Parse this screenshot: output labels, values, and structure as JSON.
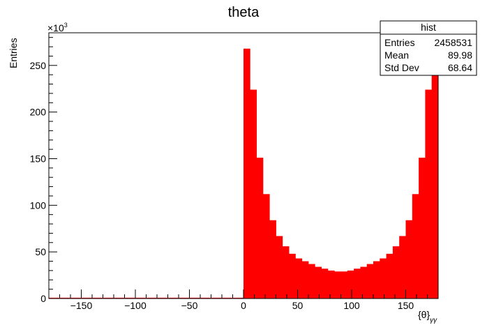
{
  "chart_data": {
    "type": "bar",
    "title": "theta",
    "xlabel": "{θ}",
    "xlabel_subscript": "γγ",
    "ylabel": "Entries",
    "y_multiplier": "×10",
    "y_multiplier_exp": "3",
    "xlim": [
      -180,
      180
    ],
    "ylim": [
      0,
      285
    ],
    "x_ticks": [
      -150,
      -100,
      -50,
      0,
      50,
      100,
      150
    ],
    "y_ticks": [
      0,
      50,
      100,
      150,
      200,
      250
    ],
    "bin_width": 6,
    "bar_color": "#ff0000",
    "bins_x_low": [
      0,
      6,
      12,
      18,
      24,
      30,
      36,
      42,
      48,
      54,
      60,
      66,
      72,
      78,
      84,
      90,
      96,
      102,
      108,
      114,
      120,
      126,
      132,
      138,
      144,
      150,
      156,
      162,
      168,
      174
    ],
    "values": [
      268,
      224,
      151,
      112,
      84,
      67,
      56,
      48,
      43,
      40,
      37,
      34,
      32,
      30,
      29,
      29,
      30,
      32,
      34,
      37,
      40,
      43,
      48,
      56,
      67,
      84,
      112,
      151,
      224,
      268
    ],
    "stats_box": {
      "title": "hist",
      "rows": [
        {
          "label": "Entries",
          "value": "2458531"
        },
        {
          "label": "Mean",
          "value": "89.98"
        },
        {
          "label": "Std Dev",
          "value": "68.64"
        }
      ]
    }
  }
}
